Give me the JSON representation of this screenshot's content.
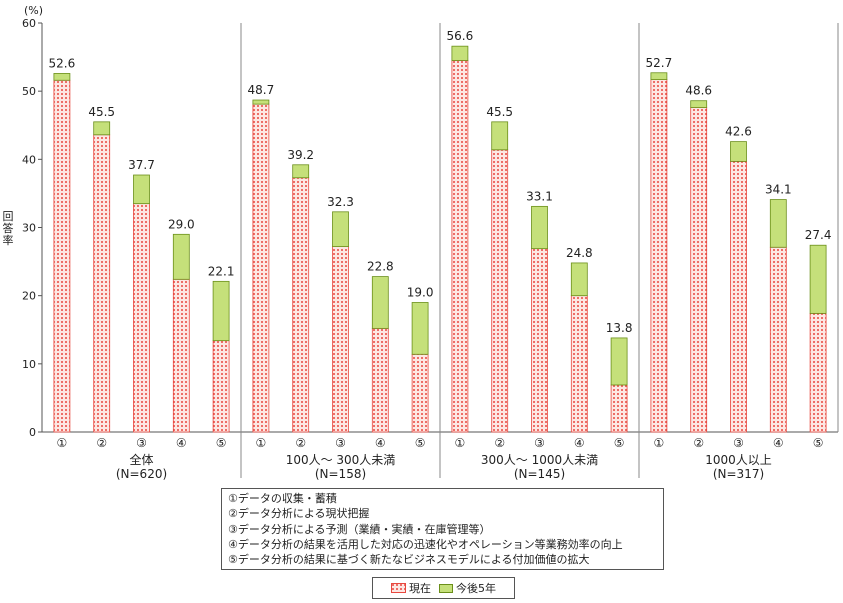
{
  "chart_data": {
    "type": "bar",
    "stacked": true,
    "y_unit_label": "(%)",
    "ylabel": "回答率",
    "ylim": [
      0,
      60
    ],
    "yticks": [
      0,
      10,
      20,
      30,
      40,
      50,
      60
    ],
    "grid": false,
    "legend_position": "bottom",
    "item_labels": [
      "①",
      "②",
      "③",
      "④",
      "⑤"
    ],
    "groups": [
      {
        "label": "全体",
        "n_label": "(N=620)",
        "current": [
          51.6,
          43.6,
          33.5,
          22.4,
          13.4
        ],
        "future5": [
          1.0,
          1.9,
          4.2,
          6.6,
          8.7
        ],
        "totals": [
          "52.6",
          "45.5",
          "37.7",
          "29.0",
          "22.1"
        ]
      },
      {
        "label": "100人～ 300人未満",
        "n_label": "(N=158)",
        "current": [
          48.1,
          37.3,
          27.2,
          15.2,
          11.4
        ],
        "future5": [
          0.6,
          1.9,
          5.1,
          7.6,
          7.6
        ],
        "totals": [
          "48.7",
          "39.2",
          "32.3",
          "22.8",
          "19.0"
        ]
      },
      {
        "label": "300人～ 1000人未満",
        "n_label": "(N=145)",
        "current": [
          54.5,
          41.4,
          26.9,
          20.0,
          6.9
        ],
        "future5": [
          2.1,
          4.1,
          6.2,
          4.8,
          6.9
        ],
        "totals": [
          "56.6",
          "45.5",
          "33.1",
          "24.8",
          "13.8"
        ]
      },
      {
        "label": "1000人以上",
        "n_label": "(N=317)",
        "current": [
          51.7,
          47.6,
          39.7,
          27.1,
          17.4
        ],
        "future5": [
          1.0,
          1.0,
          2.9,
          7.0,
          10.0
        ],
        "totals": [
          "52.7",
          "48.6",
          "42.6",
          "34.1",
          "27.4"
        ]
      }
    ],
    "series": [
      {
        "name": "現在",
        "color": "#e8483f",
        "fill_color": "#fbe2de"
      },
      {
        "name": "今後5年",
        "color": "#8dc21f",
        "fill_color": "#c5e07a"
      }
    ]
  },
  "descriptions": [
    "①データの収集・蓄積",
    "②データ分析による現状把握",
    "③データ分析による予測（業績・実績・在庫管理等）",
    "④データ分析の結果を活用した対応の迅速化やオペレーション等業務効率の向上",
    "⑤データ分析の結果に基づく新たなビジネスモデルによる付加価値の拡大"
  ],
  "legend": {
    "current_label": "現在",
    "future_label": "今後5年"
  }
}
